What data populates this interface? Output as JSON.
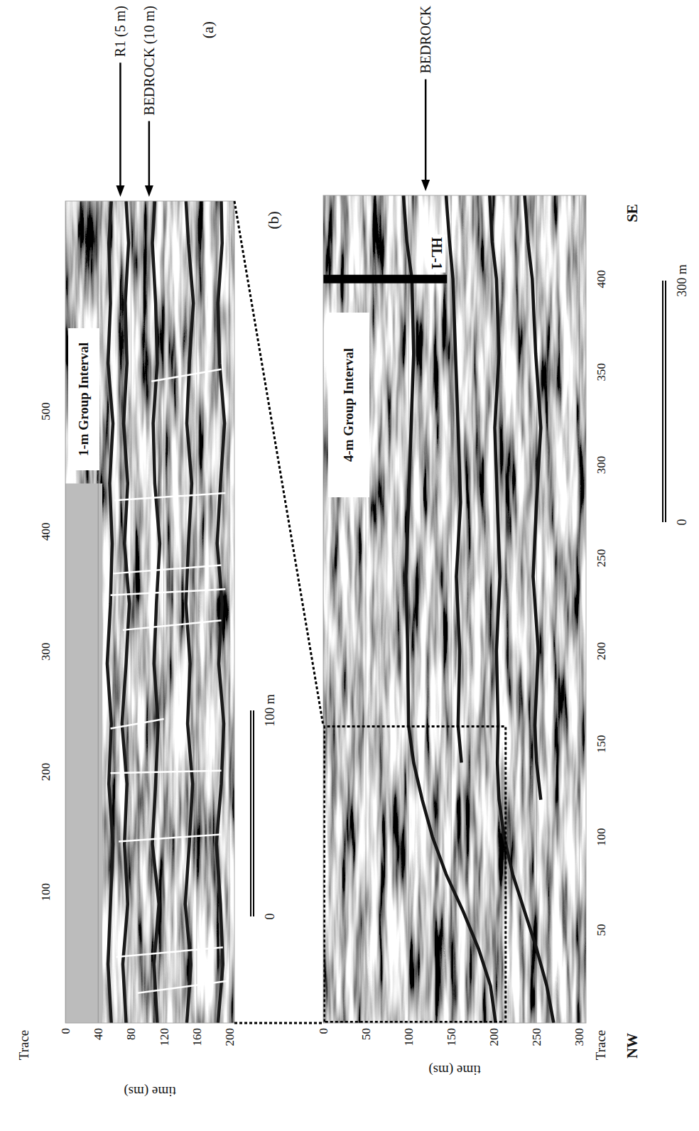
{
  "chart_data": [
    {
      "type": "line",
      "title": "(a)",
      "x_label": "Trace",
      "y_label": "time (ms)",
      "xlim": [
        -9,
        675
      ],
      "ylim": [
        206,
        0
      ],
      "xticks": [
        100,
        200,
        300,
        400,
        500
      ],
      "yticks": [
        0,
        40,
        80,
        120,
        160,
        200
      ],
      "grid": true,
      "inset_label": "1-m Group Interval",
      "record_start": 45,
      "mute": {
        "x": [
          -9,
          440
        ],
        "y": [
          0,
          45
        ]
      },
      "series": [
        {
          "color": "#1a1a1a",
          "x": [
            -9,
            40,
            90,
            140,
            190,
            240,
            290,
            340,
            390,
            440,
            490,
            540,
            590,
            640,
            675
          ],
          "values": [
            56,
            52,
            55,
            58,
            53,
            56,
            51,
            55,
            57,
            54,
            58,
            52,
            55,
            53,
            56
          ]
        },
        {
          "color": "#1a1a1a",
          "x": [
            -9,
            40,
            90,
            140,
            190,
            240,
            290,
            340,
            390,
            440,
            490,
            540,
            590,
            640,
            675
          ],
          "values": [
            74,
            70,
            76,
            72,
            75,
            69,
            74,
            78,
            72,
            76,
            71,
            75,
            73,
            77,
            74
          ]
        },
        {
          "color": "#1a1a1a",
          "x": [
            -9,
            40,
            90,
            140,
            190,
            240,
            290,
            340,
            390,
            440,
            490,
            540,
            590,
            640,
            675
          ],
          "values": [
            112,
            108,
            114,
            106,
            110,
            113,
            108,
            111,
            115,
            109,
            107,
            112,
            110,
            106,
            109
          ]
        },
        {
          "color": "#1a1a1a",
          "x": [
            -9,
            40,
            90,
            140,
            190,
            240,
            290,
            340,
            390,
            440,
            490,
            540,
            590,
            640,
            675
          ],
          "values": [
            148,
            153,
            146,
            151,
            155,
            149,
            152,
            147,
            150,
            154,
            148,
            151,
            156,
            150,
            147
          ]
        },
        {
          "color": "#1a1a1a",
          "x": [
            -9,
            40,
            90,
            140,
            190,
            240,
            290,
            340,
            390,
            440,
            490,
            540,
            590,
            640,
            675
          ],
          "values": [
            186,
            192,
            189,
            184,
            190,
            193,
            187,
            191,
            185,
            189,
            194,
            188,
            186,
            191,
            190
          ]
        }
      ],
      "faults": {
        "color": "#ffffff",
        "lines": [
          {
            "x": [
              16,
              26
            ],
            "y": [
              88,
              198
            ]
          },
          {
            "x": [
              46,
              54
            ],
            "y": [
              62,
              192
            ]
          },
          {
            "x": [
              142,
              148
            ],
            "y": [
              65,
              190
            ]
          },
          {
            "x": [
              199,
              201
            ],
            "y": [
              55,
              190
            ]
          },
          {
            "x": [
              236,
              244
            ],
            "y": [
              55,
              120
            ]
          },
          {
            "x": [
              318,
              326
            ],
            "y": [
              70,
              190
            ]
          },
          {
            "x": [
              347,
              352
            ],
            "y": [
              55,
              195
            ]
          },
          {
            "x": [
              365,
              372
            ],
            "y": [
              58,
              190
            ]
          },
          {
            "x": [
              426,
              432
            ],
            "y": [
              60,
              195
            ]
          },
          {
            "x": [
              525,
              535
            ],
            "y": [
              105,
              190
            ]
          }
        ]
      },
      "annotations": [
        {
          "text": "R1 (5 m)",
          "y": 67
        },
        {
          "text": "BEDROCK (10 m)",
          "y": 102
        }
      ],
      "scale_bar": {
        "labels": [
          "0",
          "100 m"
        ]
      }
    },
    {
      "type": "line",
      "title": "(b)",
      "x_label": "Trace",
      "y_label": "time (ms)",
      "xlim": [
        0,
        445
      ],
      "ylim": [
        308,
        0
      ],
      "xticks": [
        50,
        100,
        150,
        200,
        250,
        300,
        350,
        400
      ],
      "yticks": [
        0,
        50,
        100,
        150,
        200,
        250,
        300
      ],
      "grid": true,
      "inset_label": "4-m Group Interval",
      "series": [
        {
          "color": "#141414",
          "x": [
            0,
            20,
            40,
            60,
            80,
            100,
            120,
            140,
            160,
            200,
            240,
            280,
            320,
            360,
            400,
            420,
            445
          ],
          "values": [
            202,
            196,
            182,
            164,
            144,
            128,
            116,
            106,
            100,
            99,
            97,
            100,
            103,
            106,
            104,
            98,
            94
          ]
        },
        {
          "color": "#141414",
          "x": [
            0,
            20,
            40,
            60,
            80,
            100,
            120,
            140,
            160,
            200,
            240,
            280,
            320,
            360,
            400,
            420,
            445
          ],
          "values": [
            270,
            262,
            250,
            236,
            222,
            212,
            206,
            204,
            205,
            203,
            207,
            204,
            201,
            206,
            203,
            198,
            195
          ]
        },
        {
          "color": "#141414",
          "x": [
            0,
            20,
            40,
            60,
            80,
            100,
            120,
            140,
            160,
            200,
            240,
            280,
            320,
            360,
            400,
            420,
            445
          ],
          "values": [
            null,
            null,
            null,
            null,
            null,
            null,
            null,
            162,
            158,
            160,
            156,
            161,
            158,
            155,
            152,
            148,
            144
          ]
        },
        {
          "color": "#141414",
          "x": [
            0,
            20,
            40,
            60,
            80,
            100,
            120,
            140,
            160,
            200,
            240,
            280,
            320,
            360,
            400,
            420,
            445
          ],
          "values": [
            null,
            null,
            null,
            null,
            null,
            null,
            255,
            250,
            248,
            252,
            246,
            250,
            255,
            249,
            245,
            240,
            236
          ]
        }
      ],
      "well": {
        "label": "HL-1",
        "x": 400,
        "y": [
          0,
          145
        ]
      },
      "annotations": [
        {
          "text": "BEDROCK",
          "y": 120
        }
      ],
      "zoom_box": {
        "x": [
          0,
          160
        ],
        "y": [
          0,
          215
        ]
      },
      "directions": [
        "NW",
        "SE"
      ],
      "scale_bar": {
        "labels": [
          "0",
          "300 m"
        ]
      }
    }
  ]
}
